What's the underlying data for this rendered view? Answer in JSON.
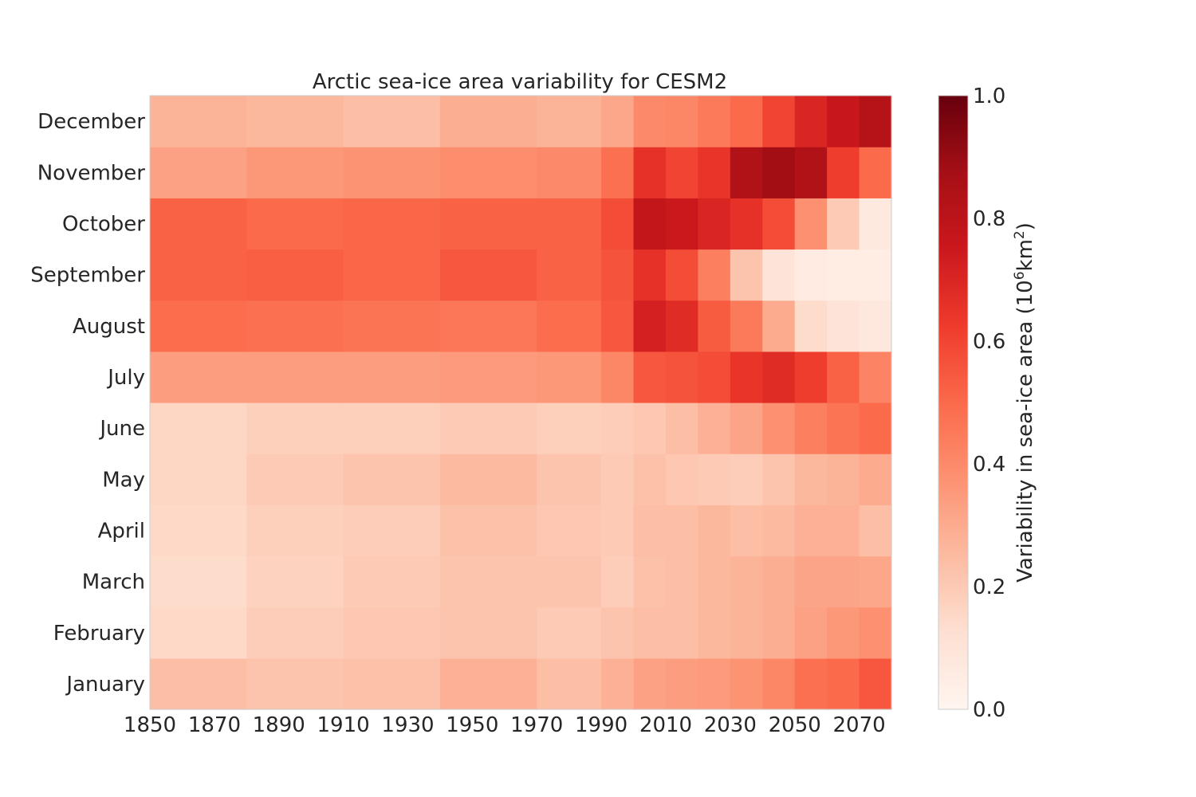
{
  "chart_data": {
    "type": "heatmap",
    "title": "Arctic sea-ice area variability for CESM2",
    "x_tick_labels": [
      "1850",
      "1870",
      "1890",
      "1910",
      "1930",
      "1950",
      "1970",
      "1990",
      "2010",
      "2030",
      "2050",
      "2070"
    ],
    "x_range": [
      1850,
      2080
    ],
    "x_bins": [
      1850,
      1880,
      1910,
      1940,
      1970,
      1990,
      2000,
      2010,
      2020,
      2030,
      2040,
      2050,
      2060,
      2070
    ],
    "y_categories": [
      "January",
      "February",
      "March",
      "April",
      "May",
      "June",
      "July",
      "August",
      "September",
      "October",
      "November",
      "December"
    ],
    "rows": [
      {
        "month": "January",
        "values": [
          0.24,
          0.22,
          0.23,
          0.28,
          0.24,
          0.28,
          0.33,
          0.34,
          0.35,
          0.37,
          0.41,
          0.48,
          0.5,
          0.55
        ]
      },
      {
        "month": "February",
        "values": [
          0.15,
          0.19,
          0.21,
          0.22,
          0.2,
          0.22,
          0.24,
          0.24,
          0.26,
          0.27,
          0.29,
          0.33,
          0.36,
          0.38
        ]
      },
      {
        "month": "March",
        "values": [
          0.14,
          0.17,
          0.2,
          0.22,
          0.22,
          0.19,
          0.23,
          0.24,
          0.26,
          0.27,
          0.29,
          0.32,
          0.32,
          0.31
        ]
      },
      {
        "month": "April",
        "values": [
          0.15,
          0.18,
          0.19,
          0.23,
          0.21,
          0.2,
          0.24,
          0.24,
          0.26,
          0.24,
          0.25,
          0.28,
          0.28,
          0.24
        ]
      },
      {
        "month": "May",
        "values": [
          0.16,
          0.2,
          0.22,
          0.25,
          0.22,
          0.2,
          0.23,
          0.21,
          0.2,
          0.19,
          0.22,
          0.26,
          0.27,
          0.3
        ]
      },
      {
        "month": "June",
        "values": [
          0.16,
          0.18,
          0.18,
          0.2,
          0.18,
          0.19,
          0.21,
          0.24,
          0.28,
          0.32,
          0.38,
          0.43,
          0.47,
          0.5
        ]
      },
      {
        "month": "July",
        "values": [
          0.34,
          0.34,
          0.34,
          0.35,
          0.36,
          0.41,
          0.55,
          0.56,
          0.58,
          0.65,
          0.68,
          0.62,
          0.52,
          0.42
        ]
      },
      {
        "month": "August",
        "values": [
          0.49,
          0.48,
          0.47,
          0.46,
          0.49,
          0.55,
          0.72,
          0.68,
          0.54,
          0.45,
          0.3,
          0.14,
          0.1,
          0.08
        ]
      },
      {
        "month": "September",
        "values": [
          0.52,
          0.53,
          0.51,
          0.55,
          0.52,
          0.56,
          0.66,
          0.58,
          0.43,
          0.22,
          0.1,
          0.06,
          0.05,
          0.05
        ]
      },
      {
        "month": "October",
        "values": [
          0.52,
          0.5,
          0.51,
          0.52,
          0.52,
          0.58,
          0.78,
          0.75,
          0.7,
          0.66,
          0.58,
          0.38,
          0.2,
          0.07
        ]
      },
      {
        "month": "November",
        "values": [
          0.33,
          0.36,
          0.37,
          0.39,
          0.4,
          0.48,
          0.66,
          0.6,
          0.65,
          0.84,
          0.88,
          0.84,
          0.62,
          0.5
        ]
      },
      {
        "month": "December",
        "values": [
          0.27,
          0.26,
          0.24,
          0.29,
          0.27,
          0.31,
          0.4,
          0.41,
          0.45,
          0.5,
          0.6,
          0.7,
          0.76,
          0.82
        ]
      }
    ],
    "colormap": "Reds",
    "colorbar": {
      "label_main": "Variability in sea-ice area (10",
      "label_sup1": "6",
      "label_mid": "km",
      "label_sup2": "2",
      "label_end": ")",
      "ticks": [
        "0.0",
        "0.2",
        "0.4",
        "0.6",
        "0.8",
        "1.0"
      ],
      "range": [
        0.0,
        1.0
      ]
    },
    "grid": false
  }
}
